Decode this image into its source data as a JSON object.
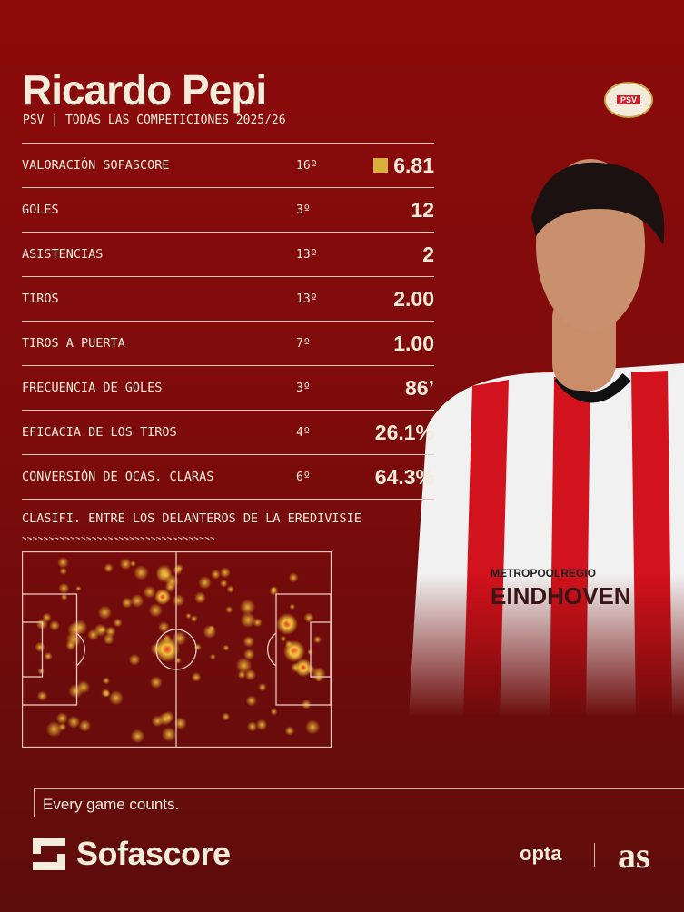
{
  "header": {
    "player_name": "Ricardo Pepi",
    "subtitle": "PSV | TODAS LAS COMPETICIONES 2025/26",
    "club_badge": "PSV"
  },
  "stats": [
    {
      "label": "VALORACIÓN SOFASCORE",
      "rank": "16º",
      "value": "6.81",
      "rating_color": "#d8b13a"
    },
    {
      "label": "GOLES",
      "rank": "3º",
      "value": "12"
    },
    {
      "label": "ASISTENCIAS",
      "rank": "13º",
      "value": "2"
    },
    {
      "label": "TIROS",
      "rank": "13º",
      "value": "2.00"
    },
    {
      "label": "TIROS A PUERTA",
      "rank": "7º",
      "value": "1.00"
    },
    {
      "label": "FRECUENCIA DE GOLES",
      "rank": "3º",
      "value": "86’"
    },
    {
      "label": "EFICACIA DE LOS TIROS",
      "rank": "4º",
      "value": "26.1%"
    },
    {
      "label": "CONVERSIÓN DE OCAS. CLARAS",
      "rank": "6º",
      "value": "64.3%"
    }
  ],
  "ranking_note": "CLASIFI. ENTRE LOS DELANTEROS DE LA EREDIVISIE",
  "arrows": ">>>>>>>>>>>>>>>>>>>>>>>>>>>>>>>>>>>>",
  "footer": {
    "tagline": "Every game counts.",
    "brand": "Sofascore",
    "partner1": "opta",
    "partner2": "as"
  },
  "colors": {
    "background": "#8d0b0b",
    "text": "#f4ecdb",
    "accent": "#d8b13a"
  }
}
